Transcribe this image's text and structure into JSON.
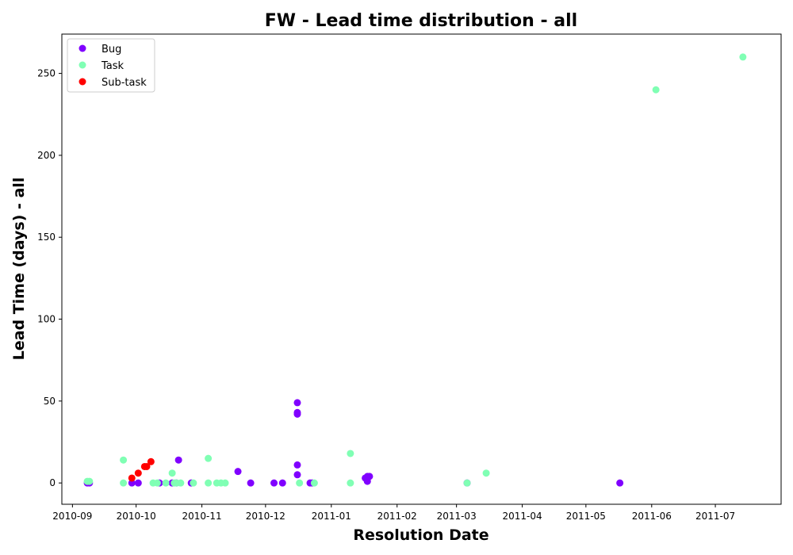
{
  "chart_data": {
    "type": "scatter",
    "title": "FW - Lead time distribution - all",
    "xlabel": "Resolution Date",
    "ylabel": "Lead Time (days) - all",
    "x_is_date": true,
    "xlim": [
      "2010-08-27",
      "2011-08-01"
    ],
    "ylim": [
      -13,
      274
    ],
    "xticks": [
      "2010-09",
      "2010-10",
      "2010-11",
      "2010-12",
      "2011-01",
      "2011-02",
      "2011-03",
      "2011-04",
      "2011-05",
      "2011-06",
      "2011-07"
    ],
    "yticks": [
      0,
      50,
      100,
      150,
      200,
      250
    ],
    "grid": false,
    "legend_position": "top-left",
    "series": [
      {
        "name": "Bug",
        "color": "#8000ff",
        "points": [
          {
            "x": "2010-09-08",
            "y": 0
          },
          {
            "x": "2010-09-09",
            "y": 0
          },
          {
            "x": "2010-09-29",
            "y": 0
          },
          {
            "x": "2010-10-02",
            "y": 0
          },
          {
            "x": "2010-10-12",
            "y": 0
          },
          {
            "x": "2010-10-18",
            "y": 0
          },
          {
            "x": "2010-10-20",
            "y": 0
          },
          {
            "x": "2010-10-21",
            "y": 14
          },
          {
            "x": "2010-10-27",
            "y": 0
          },
          {
            "x": "2010-11-18",
            "y": 7
          },
          {
            "x": "2010-11-24",
            "y": 0
          },
          {
            "x": "2010-12-05",
            "y": 0
          },
          {
            "x": "2010-12-09",
            "y": 0
          },
          {
            "x": "2010-12-16",
            "y": 49
          },
          {
            "x": "2010-12-16",
            "y": 43
          },
          {
            "x": "2010-12-16",
            "y": 42
          },
          {
            "x": "2010-12-16",
            "y": 11
          },
          {
            "x": "2010-12-16",
            "y": 5
          },
          {
            "x": "2010-12-22",
            "y": 0
          },
          {
            "x": "2010-12-23",
            "y": 0
          },
          {
            "x": "2011-01-17",
            "y": 3
          },
          {
            "x": "2011-01-18",
            "y": 4
          },
          {
            "x": "2011-01-18",
            "y": 1
          },
          {
            "x": "2011-01-19",
            "y": 4
          },
          {
            "x": "2011-03-06",
            "y": 0
          },
          {
            "x": "2011-05-17",
            "y": 0
          }
        ]
      },
      {
        "name": "Task",
        "color": "#80ffb4",
        "points": [
          {
            "x": "2010-09-08",
            "y": 1
          },
          {
            "x": "2010-09-09",
            "y": 1
          },
          {
            "x": "2010-09-25",
            "y": 14
          },
          {
            "x": "2010-09-25",
            "y": 0
          },
          {
            "x": "2010-10-09",
            "y": 0
          },
          {
            "x": "2010-10-11",
            "y": 0
          },
          {
            "x": "2010-10-15",
            "y": 0
          },
          {
            "x": "2010-10-18",
            "y": 6
          },
          {
            "x": "2010-10-19",
            "y": 0
          },
          {
            "x": "2010-10-20",
            "y": 0
          },
          {
            "x": "2010-10-22",
            "y": 0
          },
          {
            "x": "2010-10-28",
            "y": 0
          },
          {
            "x": "2010-11-04",
            "y": 15
          },
          {
            "x": "2010-11-04",
            "y": 0
          },
          {
            "x": "2010-11-08",
            "y": 0
          },
          {
            "x": "2010-11-10",
            "y": 0
          },
          {
            "x": "2010-11-12",
            "y": 0
          },
          {
            "x": "2010-12-17",
            "y": 0
          },
          {
            "x": "2010-12-24",
            "y": 0
          },
          {
            "x": "2011-01-10",
            "y": 18
          },
          {
            "x": "2011-01-10",
            "y": 0
          },
          {
            "x": "2011-03-06",
            "y": 0
          },
          {
            "x": "2011-03-15",
            "y": 6
          },
          {
            "x": "2011-06-03",
            "y": 240
          },
          {
            "x": "2011-07-14",
            "y": 260
          }
        ]
      },
      {
        "name": "Sub-task",
        "color": "#ff0000",
        "points": [
          {
            "x": "2010-09-29",
            "y": 3
          },
          {
            "x": "2010-10-02",
            "y": 6
          },
          {
            "x": "2010-10-05",
            "y": 10
          },
          {
            "x": "2010-10-06",
            "y": 10
          },
          {
            "x": "2010-10-08",
            "y": 13
          }
        ]
      }
    ]
  }
}
